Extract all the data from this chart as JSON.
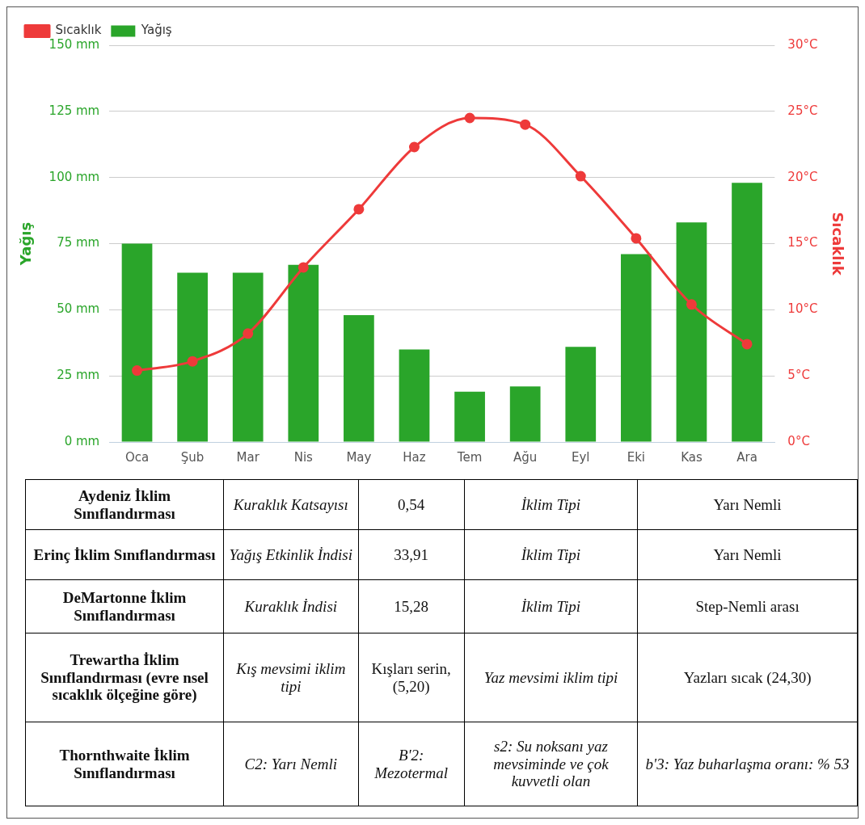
{
  "chart_data": [
    {
      "type": "bar",
      "categories": [
        "Oca",
        "Şub",
        "Mar",
        "Nis",
        "May",
        "Haz",
        "Tem",
        "Ağu",
        "Eyl",
        "Eki",
        "Kas",
        "Ara"
      ],
      "series": [
        {
          "name": "Yağış",
          "type": "bar",
          "color": "#2aa52a",
          "values": [
            75,
            64,
            64,
            67,
            48,
            35,
            19,
            21,
            36,
            71,
            83,
            98
          ]
        },
        {
          "name": "Sıcaklık",
          "type": "line",
          "axis": "y2",
          "color": "#ee3a3a",
          "values": [
            5.4,
            6.1,
            8.2,
            13.2,
            17.6,
            22.3,
            24.5,
            24.0,
            20.1,
            15.4,
            10.4,
            7.4
          ]
        }
      ],
      "ylabel": "Yağış",
      "y2label": "Sıcaklık",
      "ylim": [
        0,
        150
      ],
      "yticks": [
        {
          "value": 0,
          "label": "0 mm"
        },
        {
          "value": 25,
          "label": "25 mm"
        },
        {
          "value": 50,
          "label": "50 mm"
        },
        {
          "value": 75,
          "label": "75 mm"
        },
        {
          "value": 100,
          "label": "100 mm"
        },
        {
          "value": 125,
          "label": "125 mm"
        },
        {
          "value": 150,
          "label": "150 mm"
        }
      ],
      "y2lim": [
        0,
        30
      ],
      "y2ticks": [
        {
          "value": 0,
          "label": "0°C"
        },
        {
          "value": 5,
          "label": "5°C"
        },
        {
          "value": 10,
          "label": "10°C"
        },
        {
          "value": 15,
          "label": "15°C"
        },
        {
          "value": 20,
          "label": "20°C"
        },
        {
          "value": 25,
          "label": "25°C"
        },
        {
          "value": 30,
          "label": "30°C"
        }
      ],
      "grid": "y",
      "legend": "top left",
      "marker": "circle"
    },
    {
      "type": "other",
      "annotations": [
        "Aydeniz İklim Sınıflandırması",
        "Kuraklık Katsayısı",
        "0,54",
        "İklim Tipi",
        "Yarı Nemli",
        "Erinç İklim Sınıflandırması",
        "Yağış Etkinlik İndisi",
        "33,91",
        "İklim Tipi",
        "Yarı Nemli",
        "DeMartonne İklim Sınıflandırması",
        "Kuraklık İndisi",
        "15,28",
        "İklim Tipi",
        "Step-Nemli arası",
        "Trewartha İklim Sınıflandırması (evre nsel sıcaklık ölçeğine göre)",
        "Kış mevsimi iklim tipi",
        "Kışları serin, (5,20)",
        "Yaz mevsimi iklim tipi",
        "Yazları sıcak (24,30)",
        "Thornthwaite İklim Sınıflandırması",
        "C2: Yarı Nemli",
        "B'2: Mezotermal",
        "s2: Su noksanı yaz mevsiminde ve çok kuvvetli olan",
        "b'3: Yaz buharlaşma oranı: % 53"
      ]
    }
  ]
}
